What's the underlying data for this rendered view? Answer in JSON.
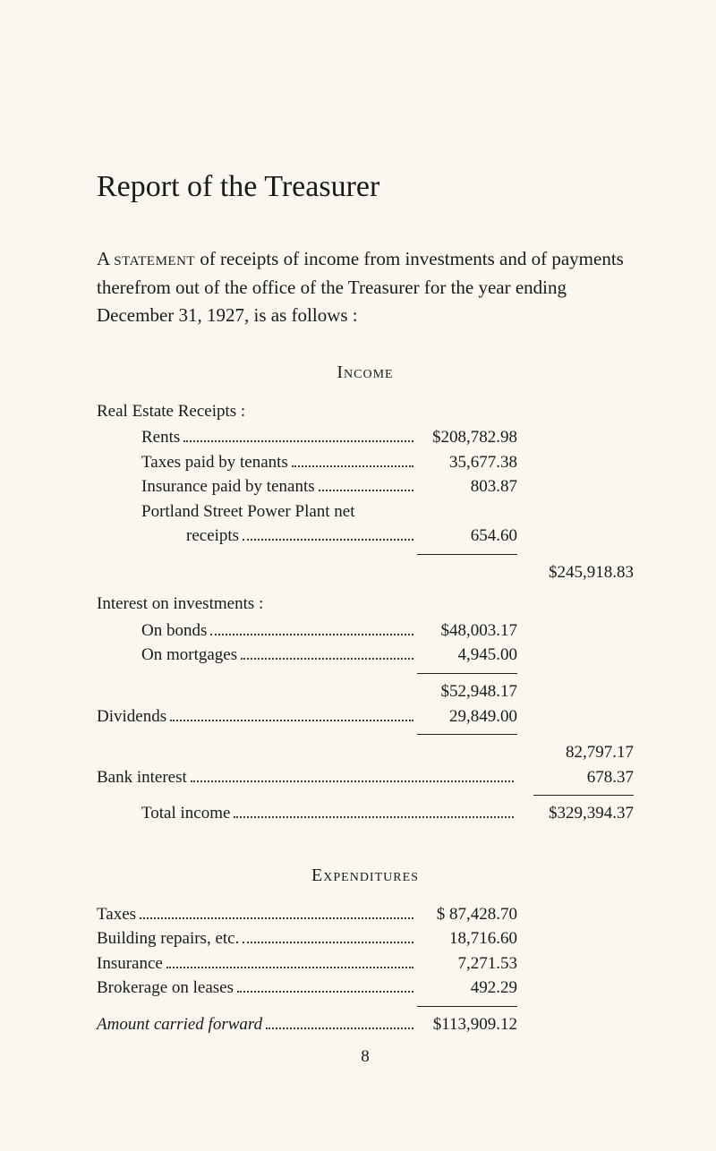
{
  "title": "Report of the Treasurer",
  "intro_pre": "A ",
  "intro_sc": "statement",
  "intro_post": " of receipts of income from investments and of payments therefrom out of the office of the Treasurer for the year ending December 31, 1927, is as follows :",
  "income": {
    "heading": "Income",
    "real_estate": {
      "heading": "Real Estate Receipts :",
      "items": [
        {
          "label": "Rents",
          "value": "$208,782.98"
        },
        {
          "label": "Taxes paid by tenants",
          "value": "35,677.38"
        },
        {
          "label": "Insurance paid by tenants",
          "value": "803.87"
        }
      ],
      "portland_label_l1": "Portland Street Power Plant net",
      "portland_label_l2": "receipts",
      "portland_value": "654.60",
      "subtotal": "$245,918.83"
    },
    "interest": {
      "heading": "Interest on investments :",
      "items": [
        {
          "label": "On bonds",
          "value": "$48,003.17"
        },
        {
          "label": "On mortgages",
          "value": "4,945.00"
        }
      ],
      "subtotal_inner": "$52,948.17",
      "dividends_label": "Dividends",
      "dividends_value": "29,849.00",
      "interest_plus_div": "82,797.17"
    },
    "bank_interest_label": "Bank interest",
    "bank_interest_value": "678.37",
    "total_label": "Total   income",
    "total_value": "$329,394.37"
  },
  "expenditures": {
    "heading": "Expenditures",
    "items": [
      {
        "label": "Taxes",
        "value": "$ 87,428.70"
      },
      {
        "label": "Building repairs, etc.",
        "value": "18,716.60"
      },
      {
        "label": "Insurance",
        "value": "7,271.53"
      },
      {
        "label": "Brokerage on leases",
        "value": "492.29"
      }
    ],
    "carried_label": "Amount carried forward",
    "carried_value": "$113,909.12"
  },
  "page_number": "8"
}
